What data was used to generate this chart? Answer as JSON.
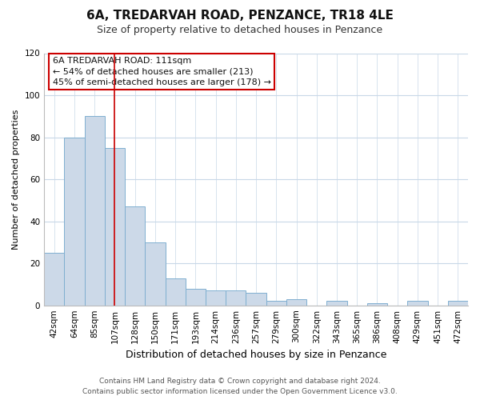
{
  "title": "6A, TREDARVAH ROAD, PENZANCE, TR18 4LE",
  "subtitle": "Size of property relative to detached houses in Penzance",
  "xlabel": "Distribution of detached houses by size in Penzance",
  "ylabel": "Number of detached properties",
  "bar_labels": [
    "42sqm",
    "64sqm",
    "85sqm",
    "107sqm",
    "128sqm",
    "150sqm",
    "171sqm",
    "193sqm",
    "214sqm",
    "236sqm",
    "257sqm",
    "279sqm",
    "300sqm",
    "322sqm",
    "343sqm",
    "365sqm",
    "386sqm",
    "408sqm",
    "429sqm",
    "451sqm",
    "472sqm"
  ],
  "bar_values": [
    25,
    80,
    90,
    75,
    47,
    30,
    13,
    8,
    7,
    7,
    6,
    2,
    3,
    0,
    2,
    0,
    1,
    0,
    2,
    0,
    2
  ],
  "bar_color": "#ccd9e8",
  "bar_edge_color": "#7fafd0",
  "vline_color": "#cc0000",
  "vline_x": 3.0,
  "ylim": [
    0,
    120
  ],
  "yticks": [
    0,
    20,
    40,
    60,
    80,
    100,
    120
  ],
  "annotation_title": "6A TREDARVAH ROAD: 111sqm",
  "annotation_line1": "← 54% of detached houses are smaller (213)",
  "annotation_line2": "45% of semi-detached houses are larger (178) →",
  "annotation_box_color": "#ffffff",
  "annotation_box_edge": "#cc0000",
  "footer_line1": "Contains HM Land Registry data © Crown copyright and database right 2024.",
  "footer_line2": "Contains public sector information licensed under the Open Government Licence v3.0.",
  "background_color": "#ffffff",
  "grid_color": "#c8d8e8",
  "title_fontsize": 11,
  "subtitle_fontsize": 9,
  "ylabel_fontsize": 8,
  "xlabel_fontsize": 9,
  "tick_fontsize": 7.5,
  "annotation_fontsize": 8,
  "footer_fontsize": 6.5
}
